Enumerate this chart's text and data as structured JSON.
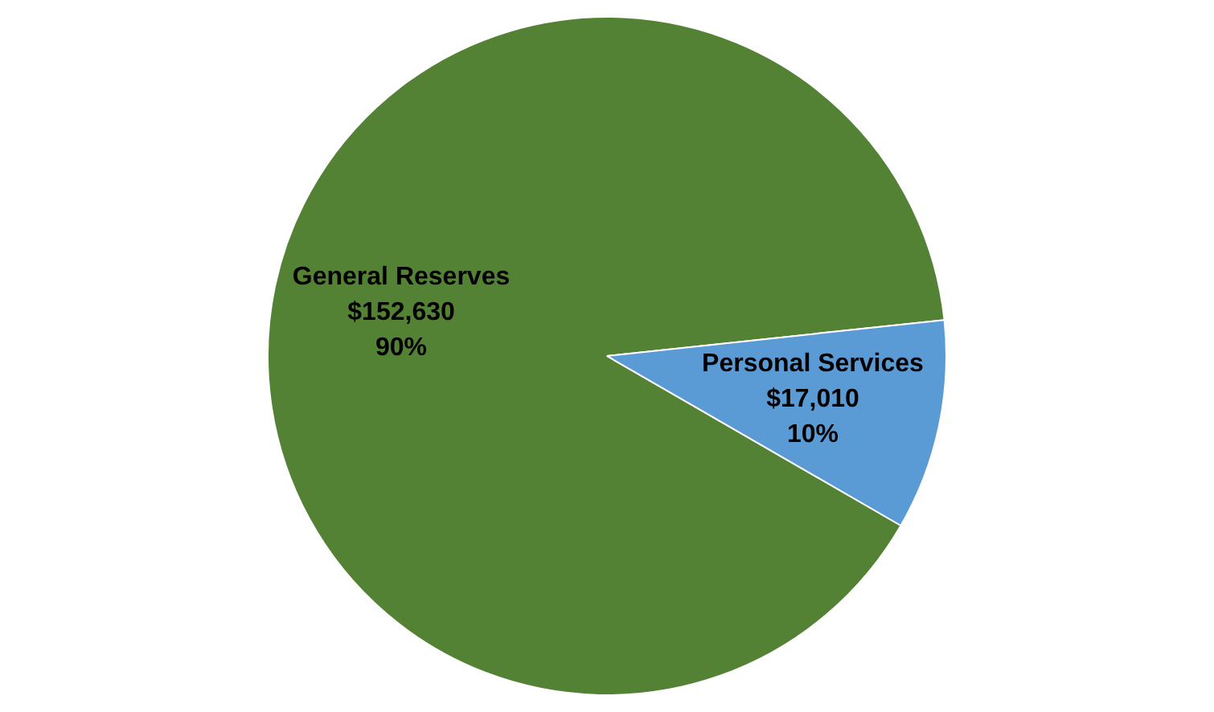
{
  "chart_data": {
    "type": "pie",
    "categories": [
      "General Reserves",
      "Personal Services"
    ],
    "values": [
      152630,
      17010
    ],
    "colors": [
      "#548235",
      "#5b9bd5"
    ],
    "value_labels": [
      "$152,630\n90%",
      "$17,010\n10%"
    ],
    "legend": false
  }
}
